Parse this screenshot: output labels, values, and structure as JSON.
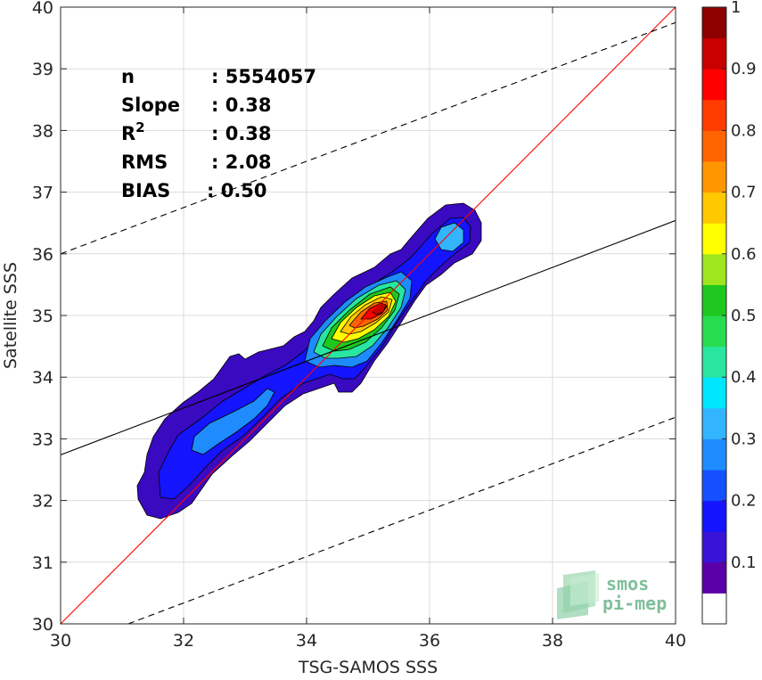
{
  "chart_data": {
    "type": "contour-density-scatter",
    "xlabel": "TSG-SAMOS SSS",
    "ylabel": "Satellite SSS",
    "xlim": [
      30,
      40
    ],
    "ylim": [
      30,
      40
    ],
    "xticks": [
      30,
      32,
      34,
      36,
      38,
      40
    ],
    "yticks": [
      30,
      31,
      32,
      33,
      34,
      35,
      36,
      37,
      38,
      39,
      40
    ],
    "grid": true,
    "stats": [
      {
        "name": "n",
        "value": ": 5554057"
      },
      {
        "name": "Slope",
        "value": ": 0.38"
      },
      {
        "name": "R",
        "sup": "2",
        "value": ": 0.38"
      },
      {
        "name": "RMS",
        "value": ": 2.08"
      },
      {
        "name": "BIAS",
        "value": ": 0.50"
      }
    ],
    "lines": {
      "identity": {
        "x": [
          30,
          40
        ],
        "y": [
          30,
          40
        ],
        "color": "#ff0000",
        "style": "solid"
      },
      "regression": {
        "x": [
          30,
          40
        ],
        "y": [
          32.74,
          36.54
        ],
        "color": "#000000",
        "style": "solid"
      },
      "upper_bound": {
        "x": [
          30,
          40
        ],
        "y": [
          36.0,
          39.75
        ],
        "color": "#000000",
        "style": "dashed"
      },
      "lower_bound": {
        "x": [
          31.1,
          40
        ],
        "y": [
          30.0,
          33.35
        ],
        "color": "#000000",
        "style": "dashed"
      }
    },
    "density_peak": {
      "x": 35.2,
      "y": 35.2
    },
    "secondary_peak": {
      "x": 36.3,
      "y": 36.3
    },
    "colorbar": {
      "min": 0,
      "max": 1,
      "tick_labels": [
        "0.1",
        "0.2",
        "0.3",
        "0.4",
        "0.5",
        "0.6",
        "0.7",
        "0.8",
        "0.9",
        "1"
      ],
      "tick_values": [
        0.1,
        0.2,
        0.3,
        0.4,
        0.5,
        0.6,
        0.7,
        0.8,
        0.9,
        1.0
      ],
      "colors": [
        "#ffffff",
        "#5a00a8",
        "#3a14d6",
        "#1414ff",
        "#1450ff",
        "#1e8cff",
        "#32b4ff",
        "#00e6ff",
        "#28e6a0",
        "#28dc50",
        "#1ec81e",
        "#a0e61e",
        "#ffff00",
        "#ffc800",
        "#ff9600",
        "#ff6400",
        "#ff3c00",
        "#ff0000",
        "#c80000",
        "#8c0000"
      ]
    }
  },
  "logo": {
    "line1": "smos",
    "line2": "pi-mep"
  }
}
